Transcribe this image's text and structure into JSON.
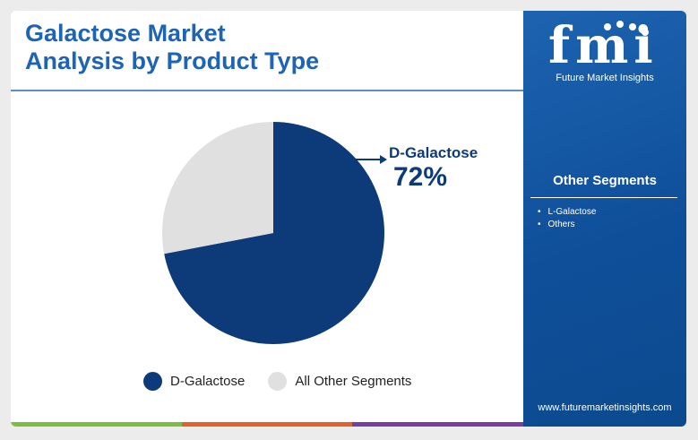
{
  "title_lines": [
    "Galactose Market",
    "Analysis by Product Type"
  ],
  "chart_data": {
    "type": "pie",
    "title": "Galactose Market Analysis by Product Type",
    "slices": [
      {
        "name": "D-Galactose",
        "value": 72,
        "color": "#0d3b7a"
      },
      {
        "name": "All Other Segments",
        "value": 28,
        "color": "#e0e0e0"
      }
    ],
    "callout": {
      "label": "D-Galactose",
      "value": "72%"
    },
    "legend_position": "bottom"
  },
  "legend": [
    {
      "label": "D-Galactose",
      "color": "#0d3b7a"
    },
    {
      "label": "All Other Segments",
      "color": "#e0e0e0"
    }
  ],
  "sidebar": {
    "logo_text": "fmi",
    "logo_subtitle": "Future Market Insights",
    "heading": "Other Segments",
    "items": [
      "L-Galactose",
      "Others"
    ],
    "url": "www.futuremarketinsights.com"
  },
  "bottom_bar_colors": [
    "#7cbf3a",
    "#e2622a",
    "#7a3ca0"
  ]
}
